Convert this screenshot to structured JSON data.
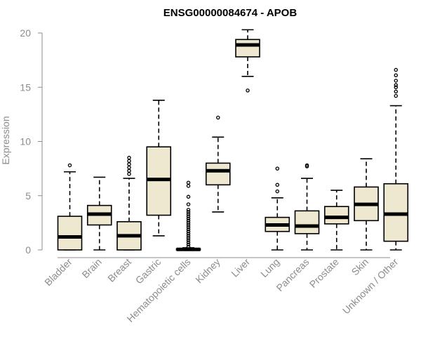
{
  "chart_data": {
    "type": "boxplot",
    "title": "ENSG00000084674 - APOB",
    "ylabel": "Expression",
    "xlabel": "",
    "ylim": [
      0,
      20
    ],
    "yticks": [
      0,
      5,
      10,
      15,
      20
    ],
    "box_color": "#efe8d0",
    "line_color": "#000000",
    "axis_color": "#8c8c8c",
    "categories": [
      {
        "name": "Bladder",
        "min": 0,
        "q1": 0,
        "median": 1.2,
        "q3": 3.1,
        "max": 7.2,
        "outliers": [
          7.8
        ]
      },
      {
        "name": "Brain",
        "min": 0,
        "q1": 2.3,
        "median": 3.3,
        "q3": 4.1,
        "max": 6.7,
        "outliers": []
      },
      {
        "name": "Breast",
        "min": 0,
        "q1": 0,
        "median": 1.3,
        "q3": 2.6,
        "max": 6.6,
        "outliers": [
          7.0,
          7.3,
          7.6,
          7.9,
          8.2,
          8.5
        ]
      },
      {
        "name": "Gastric",
        "min": 1.3,
        "q1": 3.2,
        "median": 6.5,
        "q3": 9.5,
        "max": 13.8,
        "outliers": []
      },
      {
        "name": "Hematopoietic cells",
        "min": 0,
        "q1": 0,
        "median": 0.05,
        "q3": 0.1,
        "max": 0.2,
        "outliers": [
          0.3,
          0.5,
          0.7,
          0.9,
          1.1,
          1.3,
          1.5,
          1.7,
          1.9,
          2.1,
          2.3,
          2.5,
          2.7,
          2.9,
          3.1,
          3.3,
          3.5,
          3.7,
          4.2,
          4.9,
          5.9,
          6.2
        ]
      },
      {
        "name": "Kidney",
        "min": 3.5,
        "q1": 6.0,
        "median": 7.3,
        "q3": 8.0,
        "max": 10.4,
        "outliers": [
          12.2
        ]
      },
      {
        "name": "Liver",
        "min": 16.0,
        "q1": 17.8,
        "median": 18.9,
        "q3": 19.4,
        "max": 20.3,
        "outliers": [
          14.7
        ]
      },
      {
        "name": "Lung",
        "min": 0,
        "q1": 1.7,
        "median": 2.3,
        "q3": 3.0,
        "max": 4.8,
        "outliers": [
          5.4,
          6.0,
          7.5
        ]
      },
      {
        "name": "Pancreas",
        "min": 0,
        "q1": 1.5,
        "median": 2.2,
        "q3": 3.6,
        "max": 6.6,
        "outliers": [
          7.7,
          7.8
        ]
      },
      {
        "name": "Prostate",
        "min": 0,
        "q1": 2.4,
        "median": 3.0,
        "q3": 4.0,
        "max": 5.5,
        "outliers": []
      },
      {
        "name": "Skin",
        "min": 0,
        "q1": 2.7,
        "median": 4.2,
        "q3": 5.8,
        "max": 8.4,
        "outliers": []
      },
      {
        "name": "Unknown / Other",
        "min": 0,
        "q1": 0.8,
        "median": 3.3,
        "q3": 6.1,
        "max": 13.3,
        "outliers": [
          14.2,
          14.6,
          15.0,
          15.2,
          15.6,
          16.1,
          16.6
        ]
      }
    ]
  }
}
